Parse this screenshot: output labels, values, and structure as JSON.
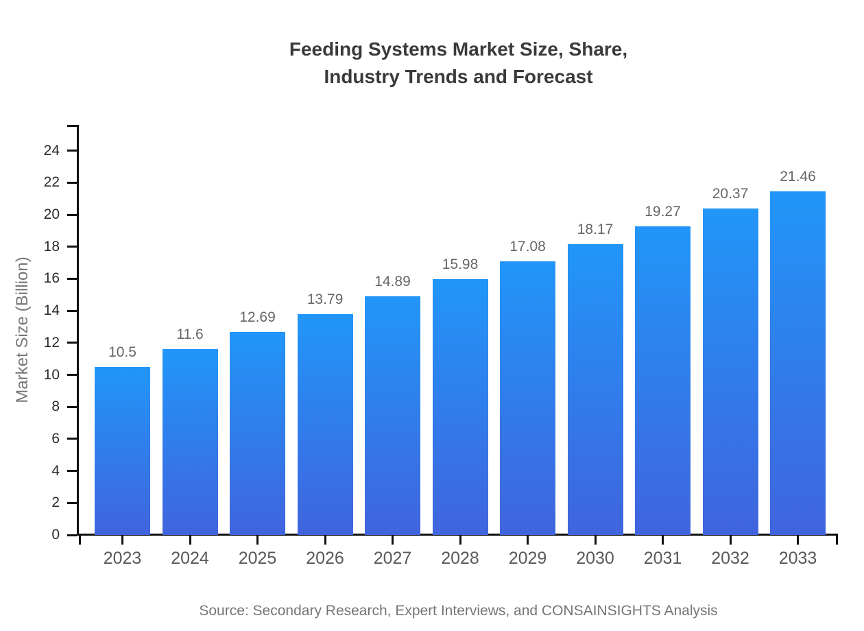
{
  "chart_data": {
    "type": "bar",
    "title_lines": [
      "Feeding Systems Market Size, Share,",
      "Industry Trends and Forecast"
    ],
    "categories": [
      "2023",
      "2024",
      "2025",
      "2026",
      "2027",
      "2028",
      "2029",
      "2030",
      "2031",
      "2032",
      "2033"
    ],
    "values": [
      10.5,
      11.6,
      12.69,
      13.79,
      14.89,
      15.98,
      17.08,
      18.17,
      19.27,
      20.37,
      21.46
    ],
    "value_labels": [
      "10.5",
      "11.6",
      "12.69",
      "13.79",
      "14.89",
      "15.98",
      "17.08",
      "18.17",
      "19.27",
      "20.37",
      "21.46"
    ],
    "xlabel": "",
    "ylabel": "Market Size (Billion)",
    "yticks": [
      0,
      2,
      4,
      6,
      8,
      10,
      12,
      14,
      16,
      18,
      20,
      22,
      24
    ],
    "ylim": [
      0,
      25.6
    ],
    "grid": false,
    "legend": "none",
    "source": "Source: Secondary Research, Expert Interviews, and CONSAINSIGHTS Analysis",
    "colors": {
      "bar_gradient_top": "#2196F8",
      "bar_gradient_bottom": "#4064DE",
      "axis": "#111111",
      "title_text": "#3A3A3A",
      "ytick_text": "#2B2B2B",
      "xtick_text": "#595959",
      "data_label_text": "#666666",
      "muted_text": "#757575"
    }
  }
}
